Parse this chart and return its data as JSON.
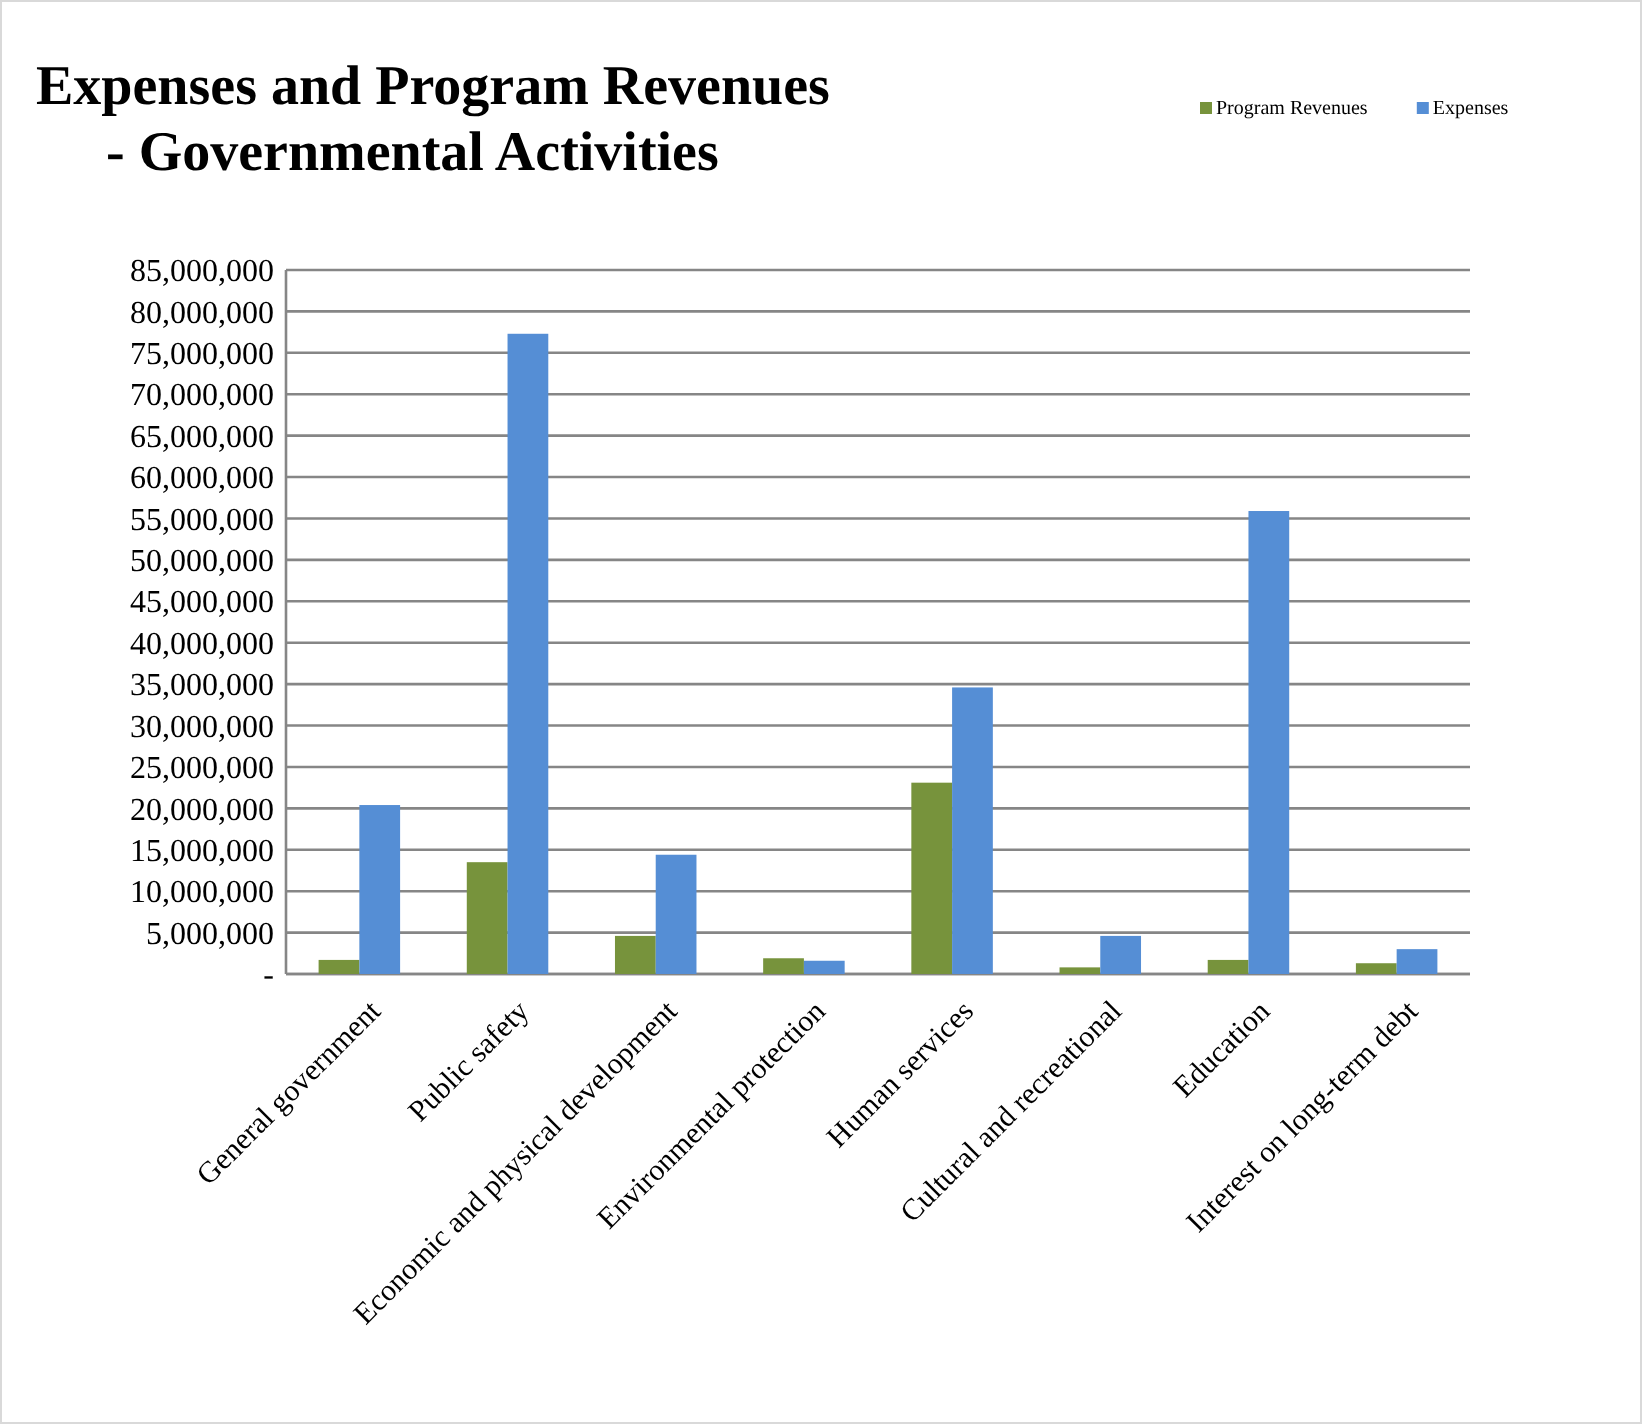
{
  "chart_data": {
    "type": "bar",
    "title": "Expenses and Program Revenues\n- Governmental Activities",
    "categories": [
      "General government",
      "Public safety",
      "Economic and physical development",
      "Environmental protection",
      "Human services",
      "Cultural and recreational",
      "Education",
      "Interest on long-term debt"
    ],
    "series": [
      {
        "name": "Program Revenues",
        "color": "#77933c",
        "values": [
          1700000,
          13500000,
          4600000,
          1900000,
          23100000,
          800000,
          1700000,
          1300000
        ]
      },
      {
        "name": "Expenses",
        "color": "#558ed5",
        "values": [
          20400000,
          77300000,
          14400000,
          1600000,
          34600000,
          4600000,
          55900000,
          3000000
        ]
      }
    ],
    "ylim": [
      0,
      85000000
    ],
    "yticks": [
      {
        "value": 0,
        "label": "-"
      },
      {
        "value": 5000000,
        "label": "5,000,000"
      },
      {
        "value": 10000000,
        "label": "10,000,000"
      },
      {
        "value": 15000000,
        "label": "15,000,000"
      },
      {
        "value": 20000000,
        "label": "20,000,000"
      },
      {
        "value": 25000000,
        "label": "25,000,000"
      },
      {
        "value": 30000000,
        "label": "30,000,000"
      },
      {
        "value": 35000000,
        "label": "35,000,000"
      },
      {
        "value": 40000000,
        "label": "40,000,000"
      },
      {
        "value": 45000000,
        "label": "45,000,000"
      },
      {
        "value": 50000000,
        "label": "50,000,000"
      },
      {
        "value": 55000000,
        "label": "55,000,000"
      },
      {
        "value": 60000000,
        "label": "60,000,000"
      },
      {
        "value": 65000000,
        "label": "65,000,000"
      },
      {
        "value": 70000000,
        "label": "70,000,000"
      },
      {
        "value": 75000000,
        "label": "75,000,000"
      },
      {
        "value": 80000000,
        "label": "80,000,000"
      },
      {
        "value": 85000000,
        "label": "85,000,000"
      }
    ],
    "grid": "y",
    "legend": "top right"
  }
}
